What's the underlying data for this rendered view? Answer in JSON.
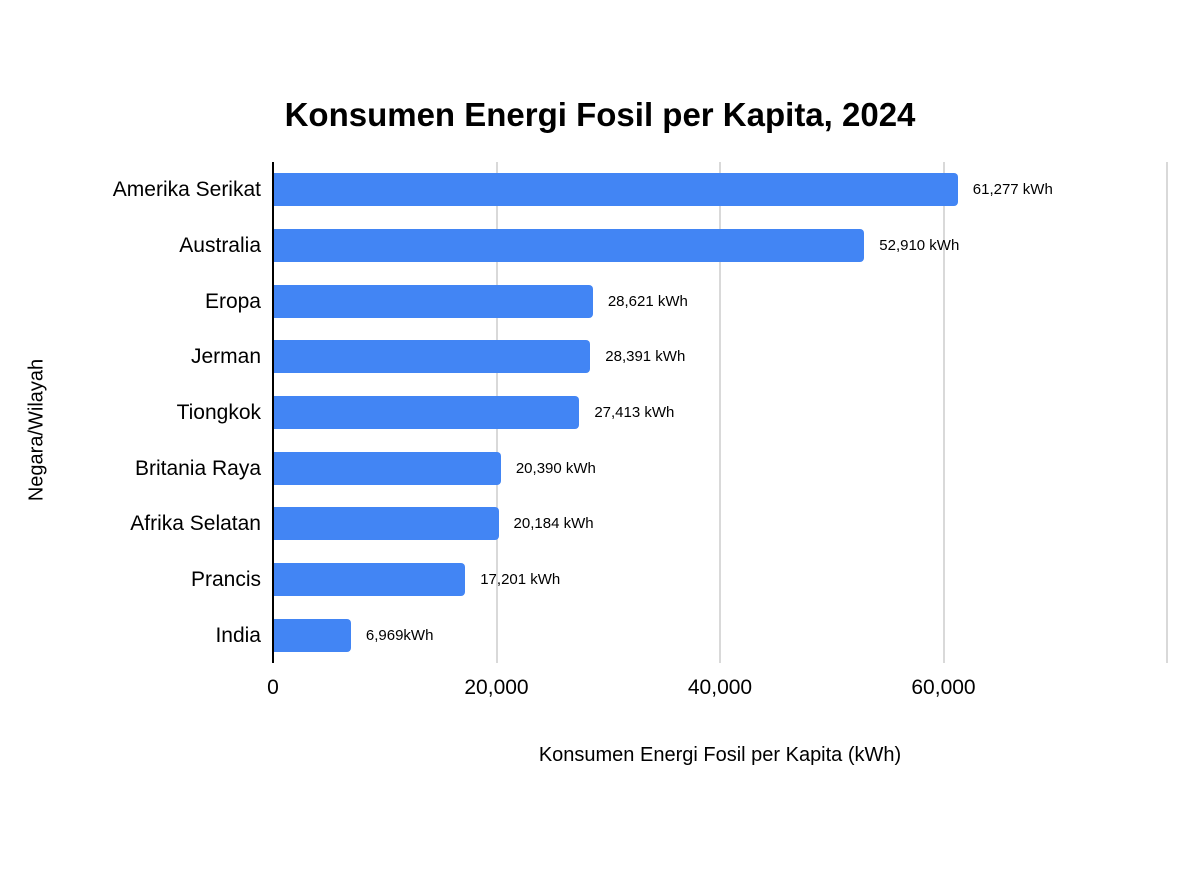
{
  "chart_data": {
    "type": "bar",
    "orientation": "horizontal",
    "title": "Konsumen Energi Fosil per Kapita, 2024",
    "xlabel": "Konsumen Energi Fosil per Kapita (kWh)",
    "ylabel": "Negara/Wilayah",
    "categories": [
      "Amerika Serikat",
      "Australia",
      "Eropa",
      "Jerman",
      "Tiongkok",
      "Britania Raya",
      "Afrika Selatan",
      "Prancis",
      "India"
    ],
    "values": [
      61277,
      52910,
      28621,
      28391,
      27413,
      20390,
      20184,
      17201,
      6969
    ],
    "value_labels": [
      "61,277 kWh",
      "52,910 kWh",
      "28,621 kWh",
      "28,391 kWh",
      "27,413 kWh",
      "20,390 kWh",
      "20,184 kWh",
      "17,201 kWh",
      "6,969kWh"
    ],
    "xlim": [
      0,
      80000
    ],
    "x_ticks": [
      {
        "value": 0,
        "label": "0"
      },
      {
        "value": 20000,
        "label": "20,000"
      },
      {
        "value": 40000,
        "label": "40,000"
      },
      {
        "value": 60000,
        "label": "60,000"
      }
    ],
    "gridline_values": [
      20000,
      40000,
      60000,
      80000
    ],
    "grid": true,
    "legend_position": "none",
    "colors": {
      "bar": "#4285F4",
      "gridline": "#D9D9D9",
      "axis": "#000000",
      "text": "#000000",
      "background": "#FFFFFF"
    }
  }
}
